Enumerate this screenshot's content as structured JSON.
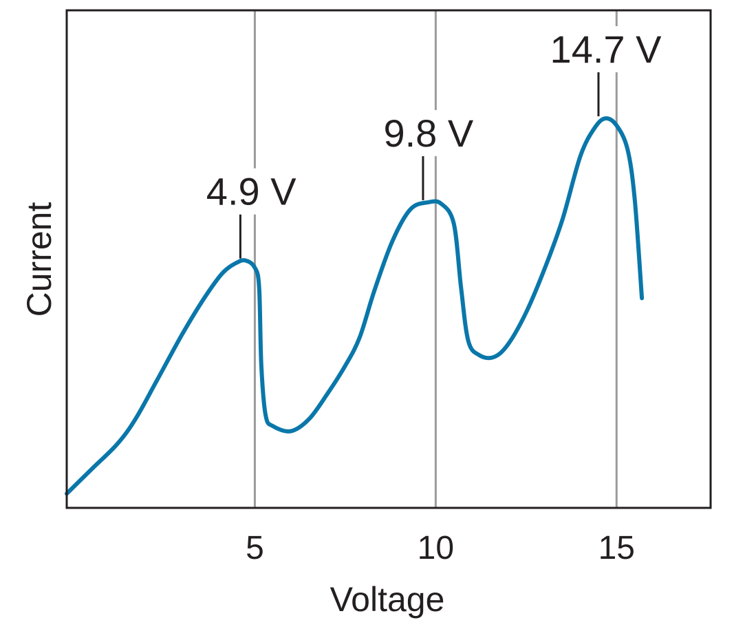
{
  "chart_data": {
    "type": "line",
    "title": "",
    "xlabel": "Voltage",
    "ylabel": "Current",
    "xlim": [
      -0.2,
      17.6
    ],
    "ylim": [
      0,
      7.0
    ],
    "x_ticks": [
      {
        "value": 5,
        "label": "5"
      },
      {
        "value": 10,
        "label": "10"
      },
      {
        "value": 15,
        "label": "15"
      }
    ],
    "y_ticks": [],
    "grid": {
      "vertical_lines_at_ticks": true,
      "horizontal": false
    },
    "colors": {
      "curve": "#0a77aa",
      "grid": "#9b9b9b",
      "frame": "#231f20",
      "text": "#231f20"
    },
    "series": [
      {
        "points": [
          [
            -0.2,
            0.2
          ],
          [
            0.5,
            0.55
          ],
          [
            1.2,
            0.9
          ],
          [
            1.7,
            1.25
          ],
          [
            2.3,
            1.8
          ],
          [
            3.0,
            2.45
          ],
          [
            3.6,
            2.95
          ],
          [
            4.1,
            3.3
          ],
          [
            4.5,
            3.45
          ],
          [
            4.75,
            3.48
          ],
          [
            5.0,
            3.38
          ],
          [
            5.12,
            3.1
          ],
          [
            5.18,
            2.0
          ],
          [
            5.3,
            1.3
          ],
          [
            5.5,
            1.15
          ],
          [
            6.0,
            1.08
          ],
          [
            6.5,
            1.25
          ],
          [
            7.0,
            1.6
          ],
          [
            7.5,
            2.0
          ],
          [
            7.9,
            2.4
          ],
          [
            8.3,
            3.05
          ],
          [
            8.8,
            3.75
          ],
          [
            9.3,
            4.2
          ],
          [
            9.8,
            4.3
          ],
          [
            10.15,
            4.28
          ],
          [
            10.5,
            4.0
          ],
          [
            10.7,
            3.1
          ],
          [
            10.9,
            2.35
          ],
          [
            11.2,
            2.15
          ],
          [
            11.6,
            2.12
          ],
          [
            12.0,
            2.3
          ],
          [
            12.5,
            2.75
          ],
          [
            13.0,
            3.35
          ],
          [
            13.5,
            4.05
          ],
          [
            14.0,
            4.95
          ],
          [
            14.4,
            5.35
          ],
          [
            14.7,
            5.48
          ],
          [
            15.0,
            5.38
          ],
          [
            15.3,
            5.05
          ],
          [
            15.5,
            4.35
          ],
          [
            15.7,
            2.95
          ]
        ]
      }
    ],
    "annotations": [
      {
        "x": 4.6,
        "y": 3.47,
        "text": "4.9 V",
        "text_x": 4.9
      },
      {
        "x": 9.65,
        "y": 4.29,
        "text": "9.8 V",
        "text_x": 9.8
      },
      {
        "x": 14.5,
        "y": 5.47,
        "text": "14.7 V",
        "text_x": 14.7
      }
    ]
  }
}
